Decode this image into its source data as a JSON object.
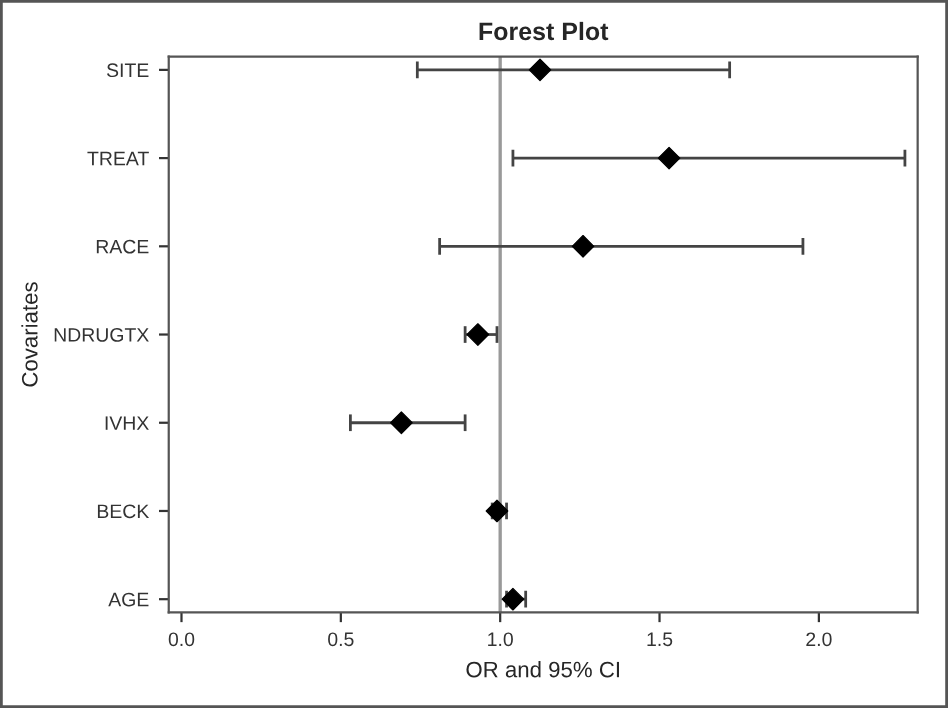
{
  "chart_data": {
    "type": "scatter",
    "orientation": "horizontal",
    "title": "Forest Plot",
    "xlabel": "OR and 95% CI",
    "ylabel": "Covariates",
    "categories": [
      "SITE",
      "TREAT",
      "RACE",
      "NDRUGTX",
      "IVHX",
      "BECK",
      "AGE"
    ],
    "values": [
      1.125,
      1.53,
      1.26,
      0.93,
      0.69,
      0.99,
      1.04
    ],
    "errors": [
      [
        0.74,
        1.72
      ],
      [
        1.04,
        2.27
      ],
      [
        0.81,
        1.95
      ],
      [
        0.89,
        0.99
      ],
      [
        0.53,
        0.89
      ],
      [
        0.975,
        1.02
      ],
      [
        1.02,
        1.08
      ]
    ],
    "color": "#000000",
    "marker": "diamond",
    "xlim": [
      -0.04,
      2.31
    ],
    "xticks": [
      {
        "value": 0,
        "label": "0.0"
      },
      {
        "value": 0.5,
        "label": "0.5"
      },
      {
        "value": 1,
        "label": "1.0"
      },
      {
        "value": 1.5,
        "label": "1.5"
      },
      {
        "value": 2,
        "label": "2.0"
      }
    ],
    "ref_lines": [
      {
        "axis": "x",
        "value": 1,
        "color": "#999999"
      }
    ],
    "grid": false,
    "legend": false
  }
}
